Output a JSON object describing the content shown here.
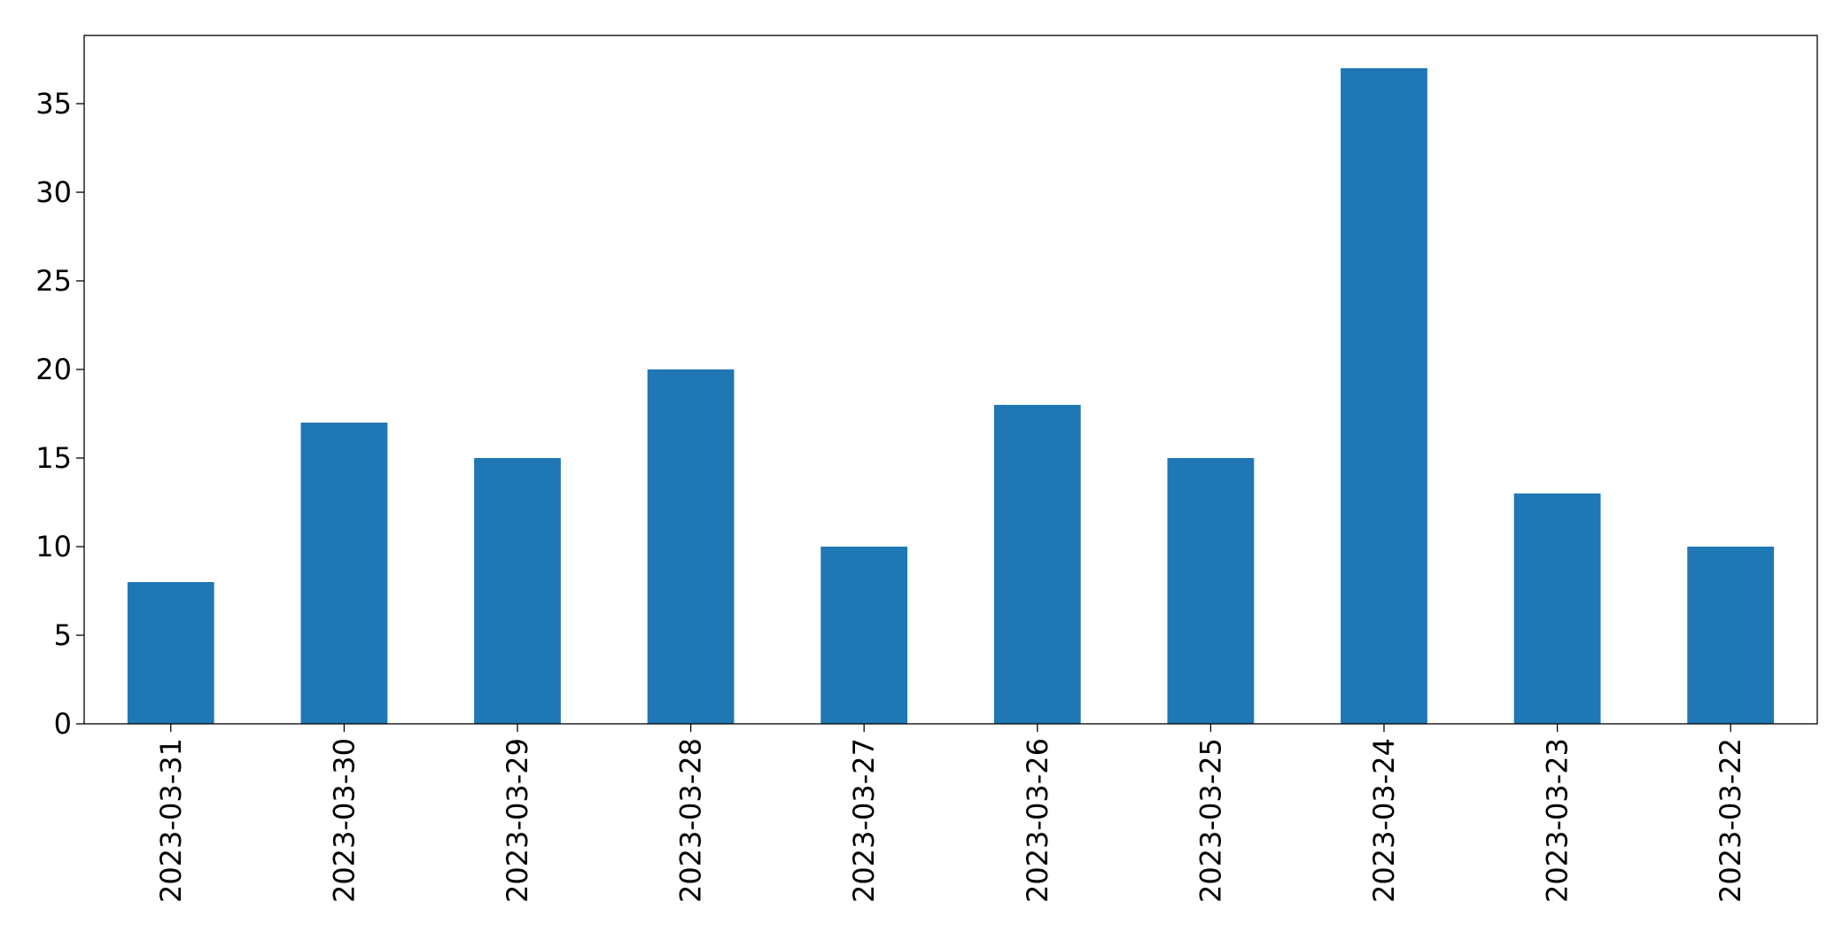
{
  "chart_data": {
    "type": "bar",
    "categories": [
      "2023-03-31",
      "2023-03-30",
      "2023-03-29",
      "2023-03-28",
      "2023-03-27",
      "2023-03-26",
      "2023-03-25",
      "2023-03-24",
      "2023-03-23",
      "2023-03-22"
    ],
    "values": [
      8,
      17,
      15,
      20,
      10,
      18,
      15,
      37,
      13,
      10
    ],
    "color": "#1f77b4",
    "ylim": [
      0,
      38.85
    ],
    "yticks": [
      0,
      5,
      10,
      15,
      20,
      25,
      30,
      35
    ],
    "grid": false
  }
}
